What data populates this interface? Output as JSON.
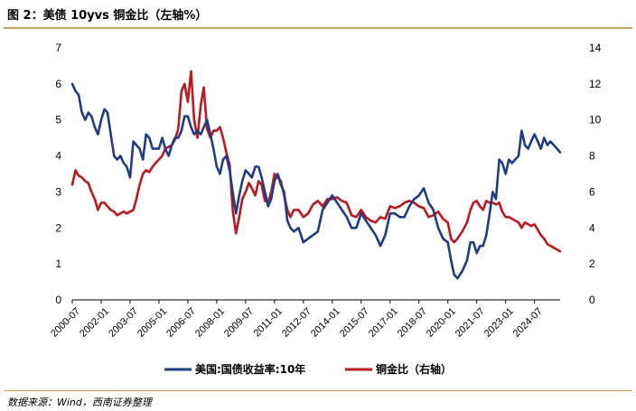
{
  "figure": {
    "title": "图 2：美债 10yvs  铜金比（左轴%）",
    "source": "数据来源：Wind，西南证券整理"
  },
  "chart_data": {
    "type": "line",
    "left_axis": {
      "range": [
        0,
        7
      ],
      "ticks": [
        "0",
        "1",
        "2",
        "3",
        "4",
        "5",
        "6",
        "7"
      ]
    },
    "right_axis": {
      "range": [
        0,
        14
      ],
      "ticks": [
        "0",
        "2",
        "4",
        "6",
        "8",
        "10",
        "12",
        "14"
      ]
    },
    "x_tick_labels": [
      "2000-07",
      "2002-01",
      "2003-07",
      "2005-01",
      "2006-07",
      "2008-01",
      "2009-07",
      "2011-01",
      "2012-07",
      "2014-01",
      "2015-07",
      "2017-01",
      "2018-07",
      "2020-01",
      "2021-07",
      "2023-01",
      "2024-07"
    ],
    "x_range": [
      2000.5,
      2025.83
    ],
    "legend": {
      "placement": "bottom-center"
    },
    "colors": {
      "us10y": "#1f3c88",
      "copper_gold": "#c0161e"
    },
    "series": [
      {
        "name": "美国:国债收益率:10年",
        "axis": "left",
        "x": [
          2000.5,
          2000.67,
          2000.83,
          2001.0,
          2001.17,
          2001.33,
          2001.5,
          2001.67,
          2001.83,
          2002.0,
          2002.17,
          2002.33,
          2002.5,
          2002.67,
          2002.83,
          2003.0,
          2003.17,
          2003.33,
          2003.5,
          2003.67,
          2003.83,
          2004.0,
          2004.17,
          2004.33,
          2004.5,
          2004.67,
          2004.83,
          2005.0,
          2005.17,
          2005.33,
          2005.5,
          2005.67,
          2005.83,
          2006.0,
          2006.17,
          2006.33,
          2006.5,
          2006.67,
          2006.83,
          2007.0,
          2007.17,
          2007.33,
          2007.5,
          2007.67,
          2007.83,
          2008.0,
          2008.17,
          2008.33,
          2008.5,
          2008.67,
          2008.83,
          2009.0,
          2009.17,
          2009.33,
          2009.5,
          2009.67,
          2009.83,
          2010.0,
          2010.17,
          2010.33,
          2010.5,
          2010.67,
          2010.83,
          2011.0,
          2011.17,
          2011.33,
          2011.5,
          2011.67,
          2011.83,
          2012.0,
          2012.25,
          2012.5,
          2012.75,
          2013.0,
          2013.25,
          2013.5,
          2013.75,
          2014.0,
          2014.25,
          2014.5,
          2014.75,
          2015.0,
          2015.25,
          2015.5,
          2015.75,
          2016.0,
          2016.25,
          2016.5,
          2016.75,
          2017.0,
          2017.25,
          2017.5,
          2017.75,
          2018.0,
          2018.25,
          2018.5,
          2018.75,
          2019.0,
          2019.25,
          2019.5,
          2019.75,
          2020.0,
          2020.17,
          2020.33,
          2020.5,
          2020.75,
          2021.0,
          2021.17,
          2021.33,
          2021.5,
          2021.67,
          2021.83,
          2022.0,
          2022.17,
          2022.33,
          2022.5,
          2022.67,
          2022.83,
          2023.0,
          2023.17,
          2023.33,
          2023.5,
          2023.67,
          2023.83,
          2024.0,
          2024.17,
          2024.33,
          2024.5,
          2024.67,
          2024.83,
          2025.0,
          2025.17,
          2025.33,
          2025.5,
          2025.67,
          2025.83
        ],
        "values": [
          6.0,
          5.8,
          5.7,
          5.2,
          5.0,
          5.2,
          5.1,
          4.8,
          4.6,
          5.0,
          5.3,
          5.2,
          4.6,
          4.0,
          3.9,
          4.0,
          3.8,
          3.7,
          3.4,
          4.4,
          4.3,
          4.2,
          3.9,
          4.6,
          4.5,
          4.2,
          4.2,
          4.2,
          4.5,
          4.2,
          4.0,
          4.3,
          4.5,
          4.5,
          4.7,
          5.1,
          5.1,
          4.8,
          4.6,
          4.7,
          4.6,
          4.8,
          5.0,
          4.6,
          4.2,
          3.7,
          3.5,
          3.9,
          4.0,
          3.6,
          3.0,
          2.4,
          2.9,
          3.3,
          3.6,
          3.5,
          3.4,
          3.7,
          3.7,
          3.4,
          3.0,
          2.6,
          2.8,
          3.3,
          3.5,
          3.2,
          3.0,
          2.2,
          2.0,
          1.9,
          2.0,
          1.6,
          1.7,
          1.8,
          1.9,
          2.5,
          2.7,
          2.9,
          2.7,
          2.5,
          2.3,
          2.0,
          2.0,
          2.4,
          2.2,
          2.0,
          1.8,
          1.5,
          1.8,
          2.4,
          2.4,
          2.3,
          2.3,
          2.6,
          2.8,
          2.9,
          3.1,
          2.7,
          2.5,
          2.0,
          1.7,
          1.6,
          1.1,
          0.7,
          0.6,
          0.8,
          1.1,
          1.6,
          1.6,
          1.3,
          1.5,
          1.5,
          1.8,
          2.4,
          3.0,
          2.8,
          3.9,
          3.8,
          3.5,
          3.9,
          3.8,
          3.9,
          4.0,
          4.7,
          4.3,
          4.2,
          4.4,
          4.6,
          4.4,
          4.2,
          4.5,
          4.3,
          4.4,
          4.3,
          4.2,
          4.1
        ],
        "styled_values_note": ""
      },
      {
        "name": "铜金比（右轴）",
        "axis": "right",
        "x": [
          2000.5,
          2000.67,
          2000.83,
          2001.0,
          2001.17,
          2001.33,
          2001.5,
          2001.67,
          2001.83,
          2002.0,
          2002.17,
          2002.33,
          2002.5,
          2002.67,
          2002.83,
          2003.0,
          2003.17,
          2003.33,
          2003.5,
          2003.67,
          2003.83,
          2004.0,
          2004.17,
          2004.33,
          2004.5,
          2004.67,
          2004.83,
          2005.0,
          2005.17,
          2005.33,
          2005.5,
          2005.67,
          2005.83,
          2006.0,
          2006.17,
          2006.33,
          2006.5,
          2006.67,
          2006.83,
          2007.0,
          2007.17,
          2007.33,
          2007.5,
          2007.67,
          2007.83,
          2008.0,
          2008.17,
          2008.33,
          2008.5,
          2008.67,
          2008.83,
          2009.0,
          2009.17,
          2009.33,
          2009.5,
          2009.67,
          2009.83,
          2010.0,
          2010.17,
          2010.33,
          2010.5,
          2010.67,
          2010.83,
          2011.0,
          2011.17,
          2011.33,
          2011.5,
          2011.67,
          2011.83,
          2012.0,
          2012.25,
          2012.5,
          2012.75,
          2013.0,
          2013.25,
          2013.5,
          2013.75,
          2014.0,
          2014.25,
          2014.5,
          2014.75,
          2015.0,
          2015.25,
          2015.5,
          2015.75,
          2016.0,
          2016.25,
          2016.5,
          2016.75,
          2017.0,
          2017.25,
          2017.5,
          2017.75,
          2018.0,
          2018.25,
          2018.5,
          2018.75,
          2019.0,
          2019.25,
          2019.5,
          2019.75,
          2020.0,
          2020.17,
          2020.33,
          2020.5,
          2020.75,
          2021.0,
          2021.17,
          2021.33,
          2021.5,
          2021.67,
          2021.83,
          2022.0,
          2022.17,
          2022.33,
          2022.5,
          2022.67,
          2022.83,
          2023.0,
          2023.17,
          2023.33,
          2023.5,
          2023.67,
          2023.83,
          2024.0,
          2024.17,
          2024.33,
          2024.5,
          2024.67,
          2024.83,
          2025.0,
          2025.17,
          2025.33,
          2025.5,
          2025.67,
          2025.83
        ],
        "values": [
          6.4,
          7.2,
          6.9,
          6.8,
          6.6,
          6.5,
          6.0,
          5.6,
          5.0,
          5.4,
          5.4,
          5.2,
          5.0,
          4.9,
          4.7,
          4.8,
          4.9,
          4.8,
          4.9,
          5.0,
          5.6,
          6.4,
          7.0,
          7.2,
          7.1,
          7.4,
          7.6,
          7.8,
          8.0,
          8.4,
          8.5,
          8.6,
          8.9,
          9.5,
          11.6,
          12.0,
          11.0,
          12.7,
          10.0,
          9.0,
          10.8,
          11.8,
          9.5,
          9.0,
          9.4,
          9.4,
          9.6,
          9.0,
          8.2,
          7.5,
          5.0,
          3.7,
          4.6,
          5.6,
          6.0,
          6.5,
          6.2,
          5.8,
          6.6,
          6.4,
          5.5,
          5.4,
          6.0,
          7.0,
          6.8,
          6.6,
          5.8,
          5.0,
          4.6,
          5.0,
          5.0,
          4.6,
          4.8,
          5.3,
          5.5,
          5.2,
          5.6,
          5.6,
          5.7,
          5.5,
          5.4,
          4.7,
          4.6,
          5.0,
          4.6,
          4.4,
          4.3,
          4.6,
          4.5,
          5.2,
          5.1,
          5.2,
          5.4,
          5.5,
          5.4,
          5.2,
          5.1,
          4.6,
          4.7,
          4.9,
          4.5,
          4.3,
          3.4,
          3.2,
          3.4,
          3.8,
          4.3,
          5.0,
          5.4,
          5.5,
          5.2,
          5.0,
          5.5,
          5.4,
          5.4,
          5.3,
          5.4,
          4.9,
          4.6,
          4.6,
          4.5,
          4.4,
          4.3,
          4.0,
          4.3,
          4.2,
          4.1,
          4.2,
          3.9,
          3.6,
          3.4,
          3.1,
          3.0,
          2.9,
          2.8,
          2.7
        ],
        "styled_values_note": ""
      }
    ]
  }
}
